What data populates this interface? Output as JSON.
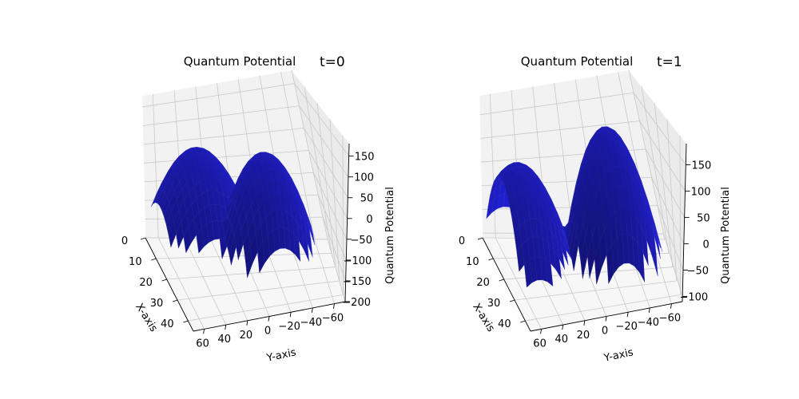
{
  "chart_data": [
    {
      "type": "surface3d",
      "title": "Quantum Potential",
      "annotation": "t=0",
      "xlabel": "X-axis",
      "ylabel": "Y-axis",
      "zlabel": "Quantum Potential",
      "color": "#0000ff",
      "x_ticks": [
        "0",
        "10",
        "20",
        "30",
        "40"
      ],
      "y_ticks": [
        "60",
        "40",
        "20",
        "0",
        "−20",
        "−40",
        "−60"
      ],
      "z_ticks": [
        "150",
        "100",
        "50",
        "0",
        "−50",
        "−100",
        "−150",
        "−200"
      ],
      "xlim": [
        0,
        45
      ],
      "ylim": [
        -70,
        70
      ],
      "zlim": [
        -200,
        180
      ],
      "peaks": [
        {
          "x": 15,
          "y": 35,
          "z": 95
        },
        {
          "x": 30,
          "y": -10,
          "z": 130
        }
      ],
      "surface_min": -60
    },
    {
      "type": "surface3d",
      "title": "Quantum Potential",
      "annotation": "t=1",
      "xlabel": "X-axis",
      "ylabel": "Y-axis",
      "zlabel": "Quantum Potential",
      "color": "#0000ff",
      "x_ticks": [
        "0",
        "10",
        "20",
        "30",
        "40"
      ],
      "y_ticks": [
        "60",
        "40",
        "20",
        "0",
        "−20",
        "−40",
        "−60"
      ],
      "z_ticks": [
        "150",
        "100",
        "50",
        "0",
        "−50",
        "−100"
      ],
      "xlim": [
        0,
        45
      ],
      "ylim": [
        -70,
        70
      ],
      "zlim": [
        -110,
        190
      ],
      "peaks": [
        {
          "x": 20,
          "y": 55,
          "z": 120
        },
        {
          "x": 25,
          "y": -20,
          "z": 180
        }
      ],
      "surface_min": -30
    }
  ]
}
